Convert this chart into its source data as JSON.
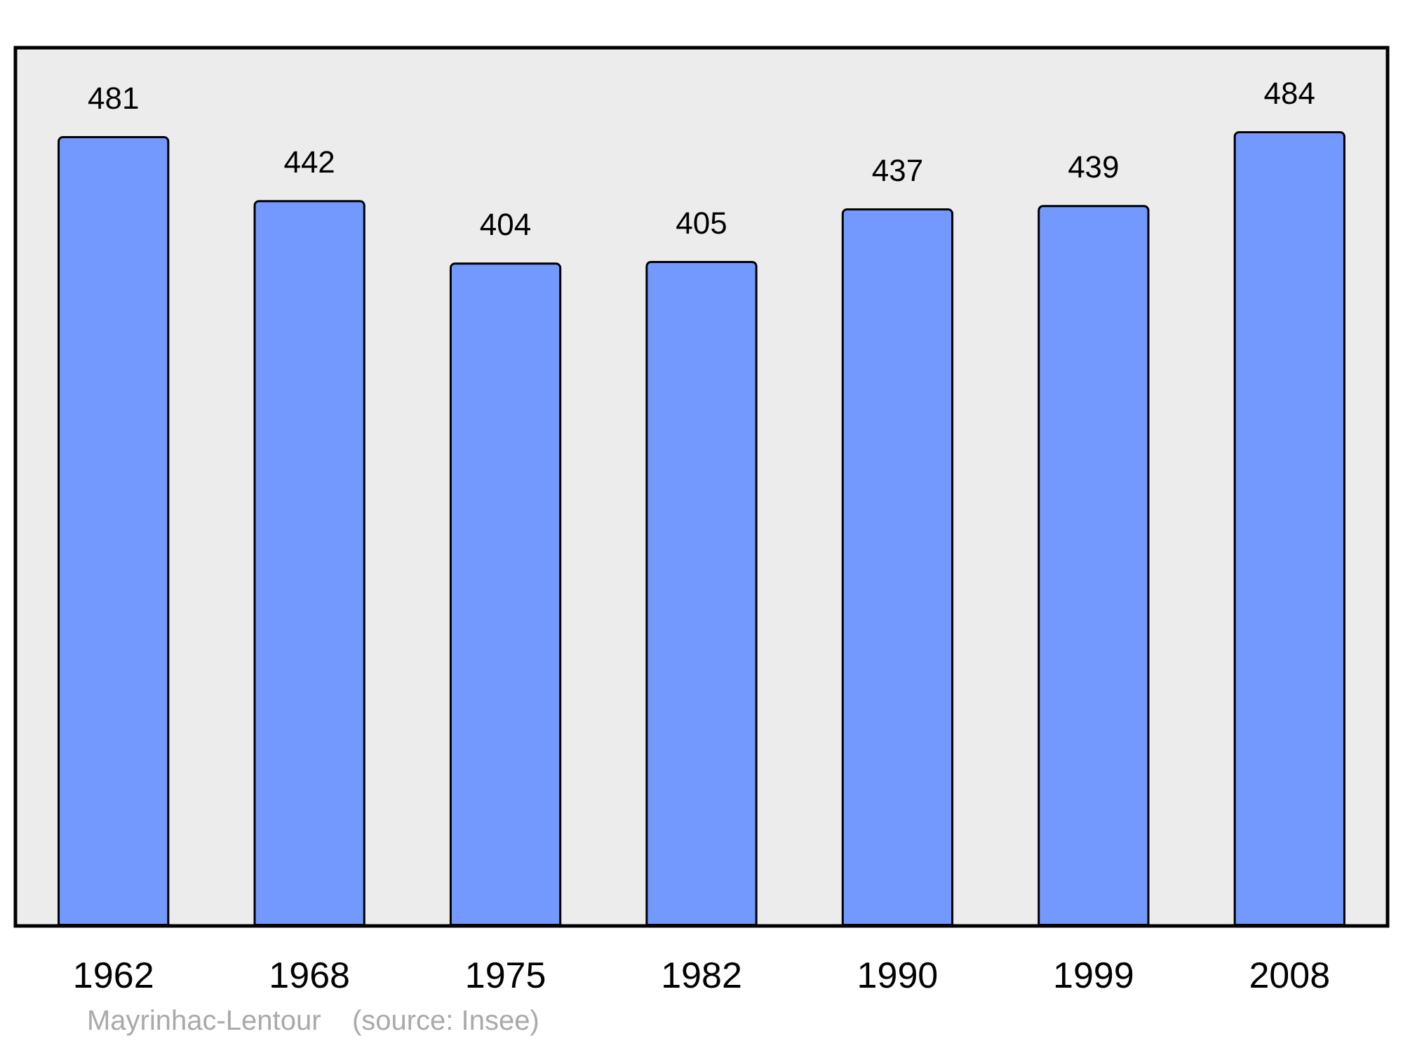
{
  "chart_data": {
    "type": "bar",
    "categories": [
      "1962",
      "1968",
      "1975",
      "1982",
      "1990",
      "1999",
      "2008"
    ],
    "values": [
      481,
      442,
      404,
      405,
      437,
      439,
      484
    ],
    "color": "#7399ff",
    "data_labels": true,
    "annotations": [
      "Mayrinhac-Lentour    (source: Insee)"
    ]
  }
}
